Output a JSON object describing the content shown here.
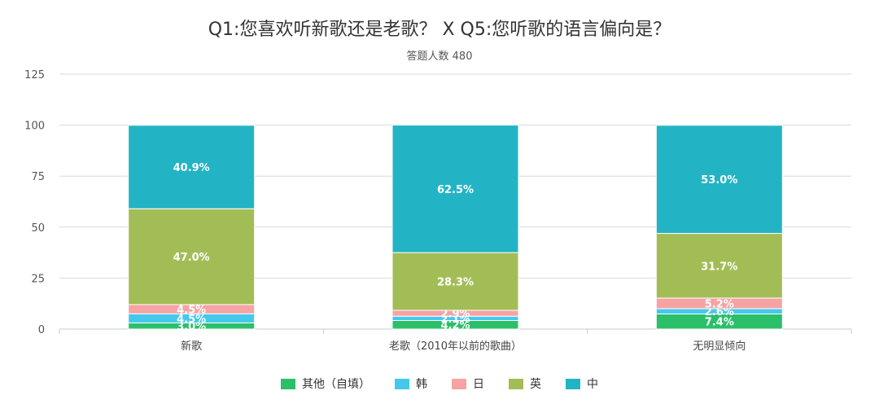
{
  "chart_data": {
    "type": "bar",
    "stacked": true,
    "title": "Q1:您喜欢听新歌还是老歌？ X Q5:您听歌的语言偏向是？",
    "subtitle": "答题人数 480",
    "categories": [
      "新歌",
      "老歌（2010年以前的歌曲）",
      "无明显倾向"
    ],
    "ylim": [
      0,
      125
    ],
    "yticks": [
      0,
      25,
      50,
      75,
      100,
      125
    ],
    "grid": true,
    "legend_position": "bottom",
    "series": [
      {
        "name": "其他（自填）",
        "color": "#2bbf6a",
        "values": [
          3.0,
          4.2,
          7.4
        ],
        "labels": [
          "3.0%",
          "4.2%",
          "7.4%"
        ]
      },
      {
        "name": "韩",
        "color": "#45c8ec",
        "values": [
          4.5,
          2.1,
          2.6
        ],
        "labels": [
          "4.5%",
          "2.1%",
          "2.6%"
        ]
      },
      {
        "name": "日",
        "color": "#f6a3a3",
        "values": [
          4.5,
          2.9,
          5.2
        ],
        "labels": [
          "4.5%",
          "2.9%",
          "5.2%"
        ]
      },
      {
        "name": "英",
        "color": "#a3bd56",
        "values": [
          47.0,
          28.3,
          31.7
        ],
        "labels": [
          "47.0%",
          "28.3%",
          "31.7%"
        ]
      },
      {
        "name": "中",
        "color": "#22b4c5",
        "values": [
          40.9,
          62.5,
          53.0
        ],
        "labels": [
          "40.9%",
          "62.5%",
          "53.0%"
        ]
      }
    ]
  }
}
